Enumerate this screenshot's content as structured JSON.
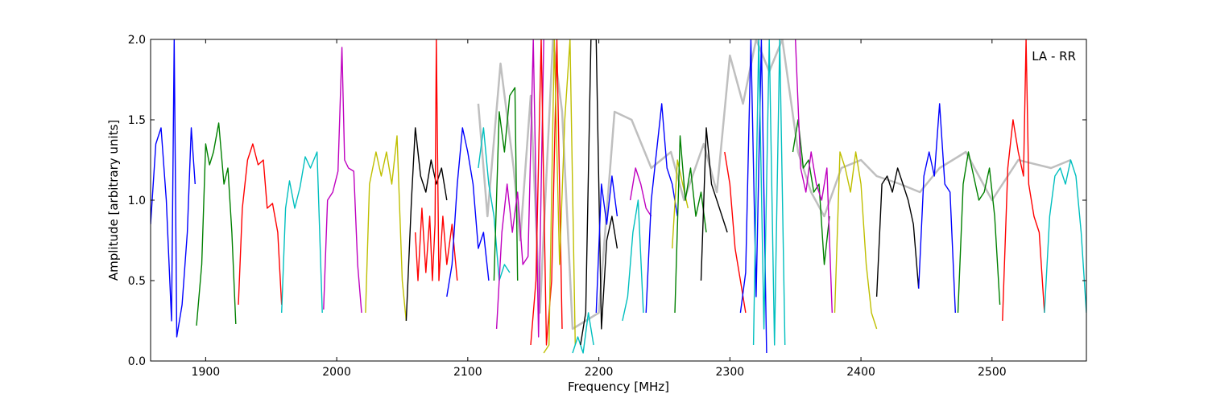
{
  "chart_data": {
    "type": "line",
    "title": "",
    "xlabel": "Frequency [MHz]",
    "ylabel": "Amplitude [arbitrary units]",
    "xlim": [
      1858,
      2572
    ],
    "ylim": [
      0.0,
      2.0
    ],
    "xticks": [
      1900,
      2000,
      2100,
      2200,
      2300,
      2400,
      2500
    ],
    "xtick_labels": [
      "1900",
      "2000",
      "2100",
      "2200",
      "2300",
      "2400",
      "2500"
    ],
    "yticks": [
      0.0,
      0.5,
      1.0,
      1.5,
      2.0
    ],
    "ytick_labels": [
      "0.0",
      "0.5",
      "1.0",
      "1.5",
      "2.0"
    ],
    "annotation": "LA - RR",
    "grid": false,
    "background_series": {
      "color": "#bfbfbf",
      "x": [
        2108,
        2115,
        2125,
        2135,
        2140,
        2148,
        2155,
        2165,
        2172,
        2180,
        2200,
        2212,
        2225,
        2240,
        2255,
        2265,
        2280,
        2290,
        2300,
        2310,
        2320,
        2330,
        2340,
        2352,
        2362,
        2372,
        2385,
        2400,
        2412,
        2430,
        2445,
        2460,
        2480,
        2500,
        2520,
        2545,
        2560
      ],
      "y": [
        1.6,
        0.9,
        1.85,
        1.2,
        0.75,
        1.65,
        0.3,
        2.0,
        1.55,
        0.2,
        0.3,
        1.55,
        1.5,
        1.2,
        1.3,
        1.0,
        1.35,
        1.05,
        1.9,
        1.6,
        2.0,
        1.8,
        2.0,
        1.3,
        1.05,
        0.9,
        1.2,
        1.25,
        1.15,
        1.1,
        1.05,
        1.2,
        1.3,
        1.0,
        1.25,
        1.2,
        1.25
      ]
    },
    "series": [
      {
        "color": "#0000ff",
        "x": [
          1858,
          1862,
          1866,
          1870,
          1874,
          1876,
          1878,
          1882,
          1886,
          1889,
          1892
        ],
        "y": [
          0.85,
          1.35,
          1.45,
          1.0,
          0.25,
          2.0,
          0.15,
          0.35,
          0.8,
          1.45,
          1.1
        ]
      },
      {
        "color": "#008000",
        "x": [
          1893,
          1897,
          1900,
          1903,
          1906,
          1910,
          1914,
          1917,
          1920,
          1923
        ],
        "y": [
          0.22,
          0.6,
          1.35,
          1.22,
          1.3,
          1.48,
          1.1,
          1.2,
          0.8,
          0.23
        ]
      },
      {
        "color": "#ff0000",
        "x": [
          1925,
          1928,
          1932,
          1936,
          1940,
          1944,
          1947,
          1951,
          1955,
          1958
        ],
        "y": [
          0.35,
          0.95,
          1.25,
          1.35,
          1.22,
          1.25,
          0.95,
          0.98,
          0.8,
          0.35
        ]
      },
      {
        "color": "#00bfbf",
        "x": [
          1958,
          1961,
          1964,
          1968,
          1972,
          1976,
          1980,
          1985,
          1989
        ],
        "y": [
          0.3,
          0.95,
          1.12,
          0.95,
          1.08,
          1.27,
          1.2,
          1.3,
          0.3
        ]
      },
      {
        "color": "#bf00bf",
        "x": [
          1990,
          1993,
          1997,
          2001,
          2004,
          2006,
          2009,
          2013,
          2016,
          2019
        ],
        "y": [
          0.32,
          1.0,
          1.05,
          1.18,
          1.95,
          1.25,
          1.2,
          1.18,
          0.6,
          0.3
        ]
      },
      {
        "color": "#bfbf00",
        "x": [
          2022,
          2025,
          2030,
          2034,
          2038,
          2042,
          2046,
          2050,
          2053
        ],
        "y": [
          0.3,
          1.1,
          1.3,
          1.15,
          1.3,
          1.1,
          1.4,
          0.5,
          0.25
        ]
      },
      {
        "color": "#000000",
        "x": [
          2053,
          2057,
          2060,
          2064,
          2068,
          2072,
          2076,
          2080,
          2084
        ],
        "y": [
          0.25,
          1.0,
          1.45,
          1.15,
          1.05,
          1.25,
          1.1,
          1.2,
          1.0
        ]
      },
      {
        "color": "#ff0000",
        "x": [
          2060,
          2062,
          2065,
          2068,
          2071,
          2073,
          2075,
          2076,
          2078,
          2081,
          2084,
          2088,
          2092
        ],
        "y": [
          0.8,
          0.5,
          0.95,
          0.55,
          0.9,
          0.5,
          0.85,
          2.0,
          0.5,
          0.9,
          0.6,
          0.85,
          0.5
        ]
      },
      {
        "color": "#0000ff",
        "x": [
          2084,
          2088,
          2092,
          2096,
          2100,
          2104,
          2108,
          2112,
          2116
        ],
        "y": [
          0.4,
          0.6,
          1.1,
          1.45,
          1.3,
          1.1,
          0.7,
          0.8,
          0.5
        ]
      },
      {
        "color": "#00bfbf",
        "x": [
          2108,
          2112,
          2116,
          2120,
          2124,
          2128,
          2132
        ],
        "y": [
          1.2,
          1.45,
          1.1,
          0.9,
          0.5,
          0.6,
          0.55
        ]
      },
      {
        "color": "#008000",
        "x": [
          2120,
          2124,
          2128,
          2132,
          2136,
          2138
        ],
        "y": [
          0.5,
          1.55,
          1.3,
          1.65,
          1.7,
          0.5
        ]
      },
      {
        "color": "#bf00bf",
        "x": [
          2122,
          2126,
          2130,
          2134,
          2138,
          2142,
          2146,
          2150,
          2154,
          2158
        ],
        "y": [
          0.2,
          0.8,
          1.1,
          0.8,
          1.05,
          0.6,
          0.65,
          2.0,
          0.15,
          2.0
        ]
      },
      {
        "color": "#ff0000",
        "x": [
          2148,
          2152,
          2156,
          2160,
          2164,
          2168,
          2172
        ],
        "y": [
          0.1,
          0.5,
          2.0,
          0.1,
          0.5,
          2.0,
          0.2
        ]
      },
      {
        "color": "#bfbf00",
        "x": [
          2158,
          2162,
          2166,
          2170,
          2174,
          2178,
          2182
        ],
        "y": [
          0.05,
          0.1,
          2.0,
          0.6,
          1.5,
          2.0,
          0.1
        ]
      },
      {
        "color": "#00bfbf",
        "x": [
          2180,
          2184,
          2188,
          2192,
          2196
        ],
        "y": [
          0.05,
          0.15,
          0.05,
          0.3,
          0.1
        ]
      },
      {
        "color": "#000000",
        "x": [
          2186,
          2190,
          2194,
          2198,
          2202,
          2206,
          2210,
          2214
        ],
        "y": [
          0.1,
          0.3,
          2.0,
          2.0,
          0.2,
          0.75,
          0.9,
          0.7
        ]
      },
      {
        "color": "#0000ff",
        "x": [
          2198,
          2202,
          2206,
          2210,
          2214
        ],
        "y": [
          0.3,
          1.1,
          0.85,
          1.15,
          0.9
        ]
      },
      {
        "color": "#00bfbf",
        "x": [
          2218,
          2222,
          2226,
          2230,
          2234
        ],
        "y": [
          0.25,
          0.4,
          0.8,
          1.0,
          0.3
        ]
      },
      {
        "color": "#bf00bf",
        "x": [
          2224,
          2228,
          2232,
          2236,
          2240
        ],
        "y": [
          1.0,
          1.2,
          1.1,
          0.95,
          0.9
        ]
      },
      {
        "color": "#0000ff",
        "x": [
          2236,
          2240,
          2244,
          2248,
          2252,
          2256,
          2260
        ],
        "y": [
          0.3,
          1.0,
          1.3,
          1.6,
          1.2,
          1.1,
          0.9
        ]
      },
      {
        "color": "#bfbf00",
        "x": [
          2256,
          2260,
          2264,
          2268
        ],
        "y": [
          0.7,
          1.25,
          1.1,
          0.95
        ]
      },
      {
        "color": "#008000",
        "x": [
          2258,
          2262,
          2266,
          2270,
          2274,
          2278,
          2282
        ],
        "y": [
          0.3,
          1.4,
          1.0,
          1.2,
          0.9,
          1.05,
          0.8
        ]
      },
      {
        "color": "#000000",
        "x": [
          2278,
          2282,
          2286,
          2290,
          2294,
          2298
        ],
        "y": [
          0.5,
          1.45,
          1.1,
          1.0,
          0.9,
          0.8
        ]
      },
      {
        "color": "#ff0000",
        "x": [
          2296,
          2300,
          2304,
          2308,
          2312
        ],
        "y": [
          1.3,
          1.1,
          0.7,
          0.5,
          0.3
        ]
      },
      {
        "color": "#0000ff",
        "x": [
          2308,
          2312,
          2316,
          2320,
          2324,
          2328
        ],
        "y": [
          0.3,
          0.55,
          2.0,
          0.4,
          2.0,
          0.05
        ]
      },
      {
        "color": "#00bfbf",
        "x": [
          2318,
          2322,
          2326,
          2330,
          2334,
          2338,
          2342
        ],
        "y": [
          0.1,
          2.0,
          0.2,
          2.0,
          0.1,
          2.0,
          0.1
        ]
      },
      {
        "color": "#008000",
        "x": [
          2348,
          2352,
          2356,
          2360,
          2364,
          2368,
          2372,
          2376
        ],
        "y": [
          1.3,
          1.5,
          1.2,
          1.25,
          1.05,
          1.1,
          0.6,
          0.9
        ]
      },
      {
        "color": "#bf00bf",
        "x": [
          2350,
          2354,
          2358,
          2362,
          2366,
          2370,
          2374,
          2378
        ],
        "y": [
          2.0,
          1.2,
          1.05,
          1.3,
          1.1,
          1.0,
          1.2,
          0.3
        ]
      },
      {
        "color": "#bfbf00",
        "x": [
          2380,
          2384,
          2388,
          2392,
          2396,
          2400,
          2404,
          2408,
          2412
        ],
        "y": [
          0.3,
          1.3,
          1.2,
          1.05,
          1.3,
          1.1,
          0.6,
          0.3,
          0.2
        ]
      },
      {
        "color": "#000000",
        "x": [
          2412,
          2416,
          2420,
          2424,
          2428,
          2432,
          2436,
          2440,
          2444
        ],
        "y": [
          0.4,
          1.1,
          1.15,
          1.05,
          1.2,
          1.1,
          1.0,
          0.85,
          0.45
        ]
      },
      {
        "color": "#0000ff",
        "x": [
          2444,
          2448,
          2452,
          2456,
          2460,
          2464,
          2468,
          2472
        ],
        "y": [
          0.45,
          1.15,
          1.3,
          1.15,
          1.6,
          1.1,
          1.05,
          0.3
        ]
      },
      {
        "color": "#008000",
        "x": [
          2474,
          2478,
          2482,
          2486,
          2490,
          2494,
          2498,
          2502,
          2506
        ],
        "y": [
          0.3,
          1.1,
          1.3,
          1.15,
          1.0,
          1.05,
          1.2,
          0.9,
          0.35
        ]
      },
      {
        "color": "#ff0000",
        "x": [
          2508,
          2512,
          2516,
          2520,
          2524,
          2526,
          2528,
          2532,
          2536,
          2540
        ],
        "y": [
          0.25,
          1.2,
          1.5,
          1.3,
          1.15,
          2.0,
          1.1,
          0.9,
          0.8,
          0.3
        ]
      },
      {
        "color": "#00bfbf",
        "x": [
          2540,
          2544,
          2548,
          2552,
          2556,
          2560,
          2564,
          2568,
          2572
        ],
        "y": [
          0.3,
          0.9,
          1.15,
          1.2,
          1.1,
          1.25,
          1.15,
          0.8,
          0.3
        ]
      }
    ]
  }
}
